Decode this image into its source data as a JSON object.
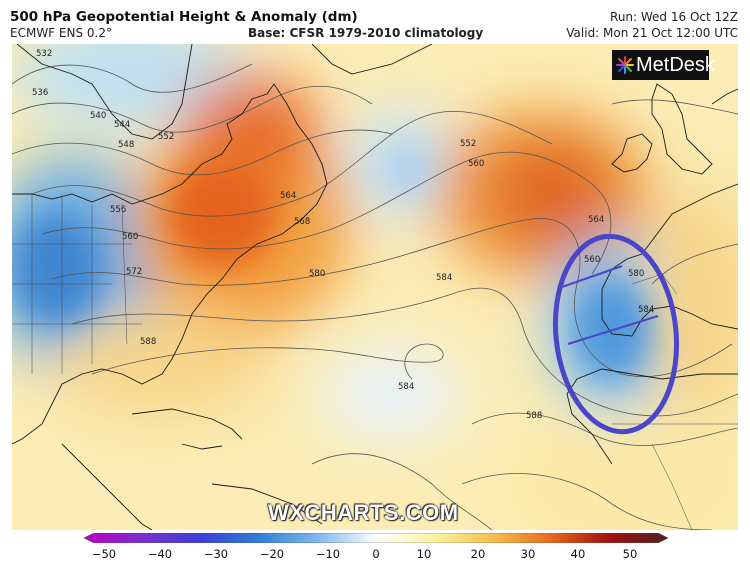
{
  "header": {
    "title": "500 hPa Geopotential Height & Anomaly (dm)",
    "model": "ECMWF ENS 0.2°",
    "base": "Base: CFSR 1979-2010 climatology",
    "run": "Run: Wed 16 Oct 12Z",
    "valid": "Valid: Mon 21 Oct 12:00 UTC"
  },
  "logo": {
    "text": "MetDesk",
    "icon": "metdesk-burst-icon"
  },
  "watermark": "WXCHARTS.COM",
  "map": {
    "contour_labels": [
      "532",
      "536",
      "540",
      "544",
      "548",
      "552",
      "556",
      "560",
      "564",
      "568",
      "572",
      "580",
      "584",
      "588",
      "552",
      "560",
      "564",
      "560",
      "580",
      "584",
      "584",
      "588"
    ],
    "highlight_color": "#4a46c8"
  },
  "colorbar": {
    "ticks": [
      "−50",
      "−40",
      "−30",
      "−20",
      "−10",
      "0",
      "10",
      "20",
      "30",
      "40",
      "50"
    ],
    "colors": [
      "#c000c0",
      "#7a2fd0",
      "#3b3fd8",
      "#2f7fd8",
      "#7fb8ee",
      "#ffffff",
      "#fff2a0",
      "#f8c04a",
      "#e8681c",
      "#a01010",
      "#502020"
    ]
  }
}
